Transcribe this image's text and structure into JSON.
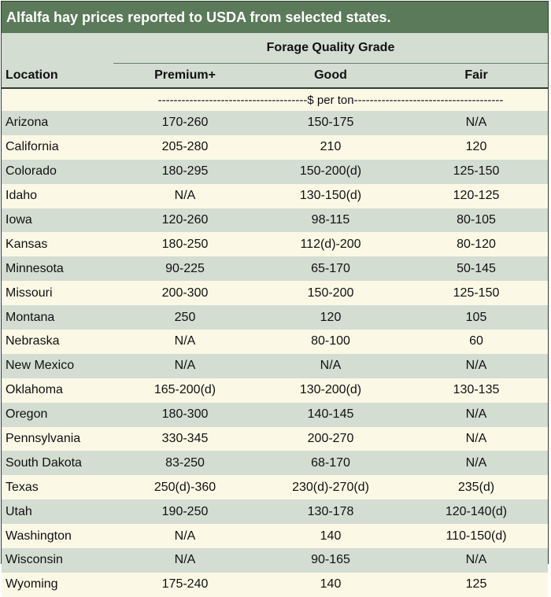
{
  "title": "Alfalfa hay prices reported to USDA from selected states.",
  "header": {
    "group_label": "Forage Quality Grade",
    "location_label": "Location",
    "grades": [
      "Premium+",
      "Good",
      "Fair"
    ]
  },
  "unit_line": "--------------------------------------$ per ton--------------------------------------",
  "rows": [
    {
      "location": "Arizona",
      "premium": "170-260",
      "good": "150-175",
      "fair": "N/A"
    },
    {
      "location": "California",
      "premium": "205-280",
      "good": "210",
      "fair": "120"
    },
    {
      "location": "Colorado",
      "premium": "180-295",
      "good": "150-200(d)",
      "fair": "125-150"
    },
    {
      "location": "Idaho",
      "premium": "N/A",
      "good": "130-150(d)",
      "fair": "120-125"
    },
    {
      "location": "Iowa",
      "premium": "120-260",
      "good": "98-115",
      "fair": "80-105"
    },
    {
      "location": "Kansas",
      "premium": "180-250",
      "good": "112(d)-200",
      "fair": "80-120"
    },
    {
      "location": "Minnesota",
      "premium": "90-225",
      "good": "65-170",
      "fair": "50-145"
    },
    {
      "location": "Missouri",
      "premium": "200-300",
      "good": "150-200",
      "fair": "125-150"
    },
    {
      "location": "Montana",
      "premium": "250",
      "good": "120",
      "fair": "105"
    },
    {
      "location": "Nebraska",
      "premium": "N/A",
      "good": "80-100",
      "fair": "60"
    },
    {
      "location": "New Mexico",
      "premium": "N/A",
      "good": "N/A",
      "fair": "N/A"
    },
    {
      "location": "Oklahoma",
      "premium": "165-200(d)",
      "good": "130-200(d)",
      "fair": "130-135"
    },
    {
      "location": "Oregon",
      "premium": "180-300",
      "good": "140-145",
      "fair": "N/A"
    },
    {
      "location": "Pennsylvania",
      "premium": "330-345",
      "good": "200-270",
      "fair": "N/A"
    },
    {
      "location": "South Dakota",
      "premium": "83-250",
      "good": "68-170",
      "fair": "N/A"
    },
    {
      "location": "Texas",
      "premium": "250(d)-360",
      "good": "230(d)-270(d)",
      "fair": "235(d)"
    },
    {
      "location": "Utah",
      "premium": "190-250",
      "good": "130-178",
      "fair": "120-140(d)"
    },
    {
      "location": "Washington",
      "premium": "N/A",
      "good": "140",
      "fair": "110-150(d)"
    },
    {
      "location": "Wisconsin",
      "premium": "N/A",
      "good": "90-165",
      "fair": "N/A"
    },
    {
      "location": "Wyoming",
      "premium": "175-240",
      "good": "140",
      "fair": "125"
    }
  ]
}
